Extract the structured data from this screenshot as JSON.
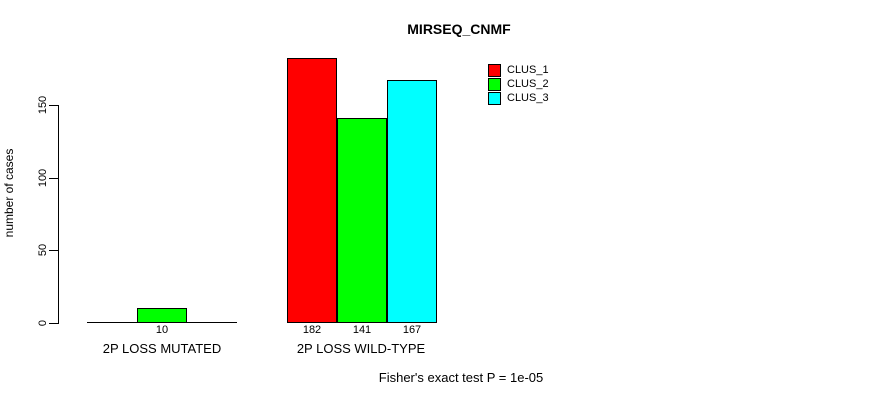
{
  "chart_data": {
    "type": "bar",
    "title": "MIRSEQ_CNMF",
    "xlabel": "",
    "ylabel": "number of cases",
    "categories": [
      "2P LOSS MUTATED",
      "2P LOSS WILD-TYPE"
    ],
    "series": [
      {
        "name": "CLUS_1",
        "color": "#ff0000",
        "values": [
          0,
          182
        ]
      },
      {
        "name": "CLUS_2",
        "color": "#00ff00",
        "values": [
          10,
          141
        ]
      },
      {
        "name": "CLUS_3",
        "color": "#00ffff",
        "values": [
          0,
          167
        ]
      }
    ],
    "yticks": [
      0,
      50,
      100,
      150
    ],
    "ylim": [
      0,
      190
    ],
    "grid": false,
    "legend_position": "top-right",
    "bar_value_labels": [
      [
        null,
        "10",
        null
      ],
      [
        "182",
        "141",
        "167"
      ]
    ],
    "footnote": "Fisher's exact test P = 1e-05",
    "text_color": "#000000",
    "background_color": "#ffffff"
  }
}
